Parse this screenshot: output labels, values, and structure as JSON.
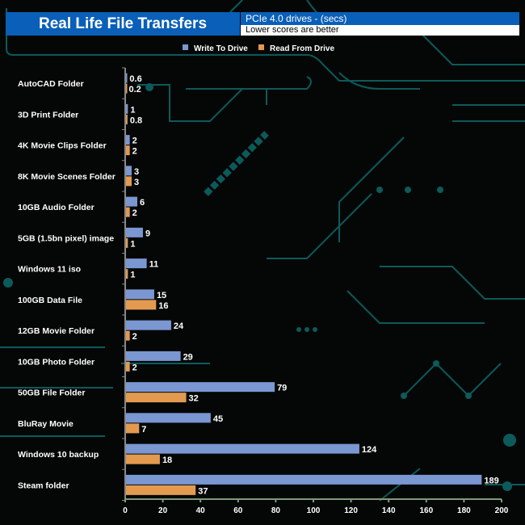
{
  "header": {
    "title": "Real Life File Transfers",
    "subtitle": "PCIe 4.0 drives - (secs)",
    "note": "Lower scores are better"
  },
  "colors": {
    "write": "#7b97d2",
    "read": "#e39a4f",
    "title_bg": "#0a5fb8",
    "circuit": "#0d5a5a"
  },
  "chart_data": {
    "type": "bar",
    "orientation": "horizontal",
    "title": "Real Life File Transfers",
    "categories": [
      "AutoCAD Folder",
      "3D Print Folder",
      "4K Movie Clips Folder",
      "8K Movie Scenes Folder",
      "10GB Audio Folder",
      "5GB (1.5bn pixel) image",
      "Windows 11 iso",
      "100GB Data File",
      "12GB Movie Folder",
      "10GB Photo Folder",
      "50GB File Folder",
      "BluRay Movie",
      "Windows 10 backup",
      "Steam folder"
    ],
    "series": [
      {
        "name": "Write To  Drive",
        "values": [
          0.6,
          1,
          2,
          3,
          6,
          9,
          11,
          15,
          24,
          29,
          79,
          45,
          124,
          189
        ]
      },
      {
        "name": "Read From  Drive",
        "values": [
          0.2,
          0.8,
          2,
          3,
          2,
          1,
          1,
          16,
          2,
          2,
          32,
          7,
          18,
          37
        ]
      }
    ],
    "xlim": [
      0,
      200
    ],
    "xticks": [
      0,
      20,
      40,
      60,
      80,
      100,
      120,
      140,
      160,
      180,
      200
    ],
    "legend": "top-center",
    "grid": false
  }
}
